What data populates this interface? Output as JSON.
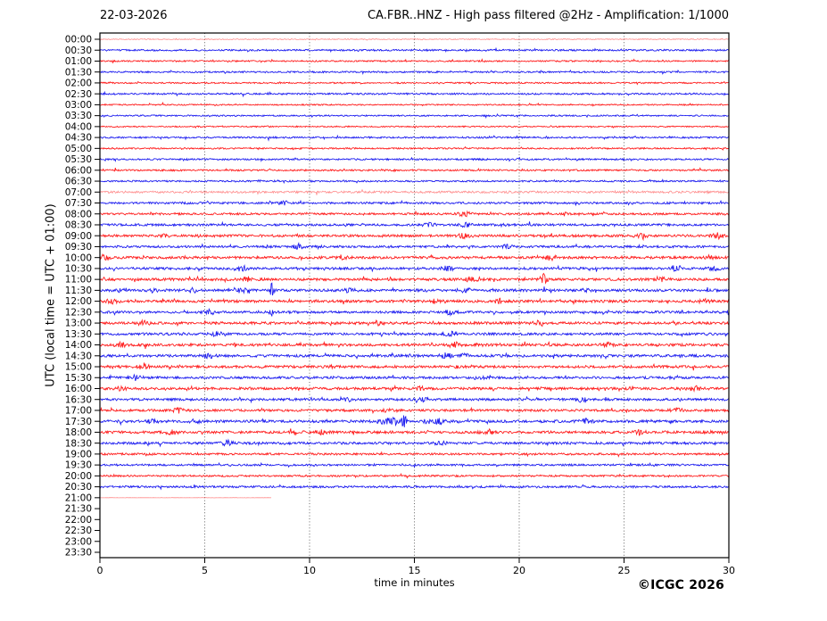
{
  "header": {
    "date": "22-03-2026",
    "title": "CA.FBR..HNZ - High pass filtered @2Hz - Amplification: 1/1000"
  },
  "footer": {
    "copyright": "©ICGC 2026"
  },
  "chart_data": {
    "type": "seismogram-helicorder",
    "title": "CA.FBR..HNZ - High pass filtered @2Hz - Amplification: 1/1000",
    "date": "22-03-2026",
    "xlabel": "time in minutes",
    "ylabel": "UTC (local time = UTC + 01:00)",
    "x_axis": {
      "min": 0,
      "max": 30,
      "ticks": [
        0,
        5,
        10,
        15,
        20,
        25,
        30
      ],
      "gridlines": [
        5,
        10,
        15,
        20,
        25
      ],
      "grid_style": "dotted"
    },
    "row_interval_minutes": 30,
    "colors": {
      "red_trace": "#ff0000",
      "blue_trace": "#0000ee",
      "frame": "#000000",
      "grid": "#555555",
      "text": "#000000"
    },
    "legend": "rows alternate red/blue per 30-min segment; events listed as [minute, amplitude_px, width_min]",
    "rows": [
      {
        "t": "00:00",
        "c": "r",
        "n": 0.5,
        "light": true,
        "ev": []
      },
      {
        "t": "00:30",
        "c": "b",
        "n": 0.9,
        "ev": []
      },
      {
        "t": "01:00",
        "c": "r",
        "n": 0.8,
        "ev": []
      },
      {
        "t": "01:30",
        "c": "b",
        "n": 0.9,
        "ev": []
      },
      {
        "t": "02:00",
        "c": "r",
        "n": 0.8,
        "ev": []
      },
      {
        "t": "02:30",
        "c": "b",
        "n": 0.9,
        "ev": []
      },
      {
        "t": "03:00",
        "c": "r",
        "n": 0.7,
        "ev": []
      },
      {
        "t": "03:30",
        "c": "b",
        "n": 0.8,
        "ev": []
      },
      {
        "t": "04:00",
        "c": "r",
        "n": 0.7,
        "ev": []
      },
      {
        "t": "04:30",
        "c": "b",
        "n": 0.9,
        "ev": []
      },
      {
        "t": "05:00",
        "c": "r",
        "n": 0.8,
        "ev": []
      },
      {
        "t": "05:30",
        "c": "b",
        "n": 0.9,
        "ev": []
      },
      {
        "t": "06:00",
        "c": "r",
        "n": 0.9,
        "ev": []
      },
      {
        "t": "06:30",
        "c": "b",
        "n": 0.9,
        "ev": []
      },
      {
        "t": "07:00",
        "c": "r",
        "n": 1.2,
        "light": true,
        "ev": []
      },
      {
        "t": "07:30",
        "c": "b",
        "n": 1.1,
        "ev": [
          [
            8.8,
            2.5,
            0.3
          ]
        ]
      },
      {
        "t": "08:00",
        "c": "r",
        "n": 1.1,
        "ev": [
          [
            17.4,
            3,
            0.3
          ]
        ]
      },
      {
        "t": "08:30",
        "c": "b",
        "n": 1.2,
        "ev": [
          [
            15.7,
            2,
            0.3
          ],
          [
            17.4,
            3,
            0.3
          ],
          [
            19.3,
            1.5,
            0.3
          ]
        ]
      },
      {
        "t": "09:00",
        "c": "r",
        "n": 1.3,
        "ev": [
          [
            3.2,
            1.5,
            0.3
          ],
          [
            17.4,
            3,
            0.3
          ],
          [
            25.8,
            2,
            0.3
          ],
          [
            29.5,
            2.5,
            0.3
          ]
        ]
      },
      {
        "t": "09:30",
        "c": "b",
        "n": 1.2,
        "ev": [
          [
            9.4,
            3,
            0.3
          ],
          [
            19.4,
            2,
            0.3
          ]
        ]
      },
      {
        "t": "10:00",
        "c": "r",
        "n": 1.4,
        "ev": [
          [
            0.2,
            3,
            0.3
          ],
          [
            11.5,
            2.5,
            0.3
          ],
          [
            21.5,
            2.5,
            0.3
          ],
          [
            29.0,
            2.5,
            0.3
          ]
        ]
      },
      {
        "t": "10:30",
        "c": "b",
        "n": 1.3,
        "ev": [
          [
            6.8,
            3,
            0.3
          ],
          [
            16.6,
            2.5,
            0.3
          ],
          [
            27.5,
            3,
            0.3
          ],
          [
            29.3,
            2,
            0.3
          ]
        ]
      },
      {
        "t": "11:00",
        "c": "r",
        "n": 1.4,
        "ev": [
          [
            7.0,
            2.5,
            0.3
          ],
          [
            17.7,
            3,
            0.3
          ],
          [
            21.2,
            8,
            0.12
          ],
          [
            26.7,
            2,
            0.3
          ]
        ]
      },
      {
        "t": "11:30",
        "c": "b",
        "n": 1.4,
        "ev": [
          [
            0.9,
            1.5,
            0.3
          ],
          [
            2.5,
            2,
            0.3
          ],
          [
            4.4,
            2,
            0.3
          ],
          [
            6.7,
            2.5,
            0.5
          ],
          [
            8.2,
            9,
            0.1
          ],
          [
            11.9,
            2.5,
            0.3
          ],
          [
            17.4,
            2.5,
            0.3
          ],
          [
            23.2,
            2.5,
            0.3
          ]
        ]
      },
      {
        "t": "12:00",
        "c": "r",
        "n": 1.4,
        "ev": [
          [
            0.6,
            2.5,
            0.3
          ],
          [
            16.0,
            2,
            0.3
          ],
          [
            19.0,
            4,
            0.15
          ],
          [
            28.8,
            2,
            0.3
          ]
        ]
      },
      {
        "t": "12:30",
        "c": "b",
        "n": 1.3,
        "ev": [
          [
            5.2,
            2.5,
            0.3
          ],
          [
            8.2,
            5,
            0.1
          ],
          [
            16.7,
            2.5,
            0.3
          ]
        ]
      },
      {
        "t": "13:00",
        "c": "r",
        "n": 1.4,
        "ev": [
          [
            2.0,
            2.5,
            0.3
          ],
          [
            13.3,
            2.5,
            0.3
          ],
          [
            21.0,
            2.5,
            0.3
          ]
        ]
      },
      {
        "t": "13:30",
        "c": "b",
        "n": 1.3,
        "ev": [
          [
            5.5,
            2.5,
            0.3
          ],
          [
            16.7,
            3,
            0.3
          ]
        ]
      },
      {
        "t": "14:00",
        "c": "r",
        "n": 1.4,
        "ev": [
          [
            1.0,
            2.5,
            0.3
          ],
          [
            17.0,
            2.5,
            0.3
          ],
          [
            24.2,
            2.5,
            0.3
          ]
        ]
      },
      {
        "t": "14:30",
        "c": "b",
        "n": 1.4,
        "ev": [
          [
            5.2,
            2,
            0.3
          ],
          [
            16.5,
            3,
            0.3
          ],
          [
            17.4,
            2.5,
            0.3
          ]
        ]
      },
      {
        "t": "15:00",
        "c": "r",
        "n": 1.4,
        "ev": [
          [
            2.1,
            2.5,
            0.3
          ],
          [
            17.1,
            2.5,
            0.3
          ]
        ]
      },
      {
        "t": "15:30",
        "c": "b",
        "n": 1.3,
        "ev": [
          [
            1.7,
            2.5,
            0.3
          ],
          [
            18.1,
            2,
            0.3
          ]
        ]
      },
      {
        "t": "16:00",
        "c": "r",
        "n": 1.4,
        "ev": [
          [
            1.0,
            2.5,
            0.3
          ],
          [
            15.3,
            2,
            0.3
          ],
          [
            28.4,
            2.5,
            0.3
          ]
        ]
      },
      {
        "t": "16:30",
        "c": "b",
        "n": 1.3,
        "ev": [
          [
            11.9,
            2,
            0.3
          ],
          [
            15.4,
            2.5,
            0.3
          ],
          [
            23.0,
            2.5,
            0.3
          ]
        ]
      },
      {
        "t": "17:00",
        "c": "r",
        "n": 1.3,
        "ev": [
          [
            3.7,
            2.5,
            0.3
          ],
          [
            13.7,
            2,
            0.3
          ],
          [
            27.5,
            2.5,
            0.3
          ]
        ]
      },
      {
        "t": "17:30",
        "c": "b",
        "n": 1.4,
        "ev": [
          [
            2.5,
            1.5,
            0.3
          ],
          [
            4.6,
            2,
            0.3
          ],
          [
            13.8,
            3,
            0.6
          ],
          [
            14.5,
            7,
            0.12
          ],
          [
            16.0,
            3,
            0.5
          ],
          [
            23.2,
            2.5,
            0.3
          ]
        ]
      },
      {
        "t": "18:00",
        "c": "r",
        "n": 1.4,
        "ev": [
          [
            3.4,
            2.5,
            0.3
          ],
          [
            10.6,
            2.5,
            0.3
          ],
          [
            18.5,
            2.5,
            0.3
          ],
          [
            25.7,
            2.5,
            0.3
          ]
        ]
      },
      {
        "t": "18:30",
        "c": "b",
        "n": 1.3,
        "ev": [
          [
            6.1,
            2.5,
            0.3
          ],
          [
            16.3,
            2,
            0.3
          ]
        ]
      },
      {
        "t": "19:00",
        "c": "r",
        "n": 1.1,
        "ev": []
      },
      {
        "t": "19:30",
        "c": "b",
        "n": 1.0,
        "ev": []
      },
      {
        "t": "20:00",
        "c": "r",
        "n": 1.0,
        "ev": []
      },
      {
        "t": "20:30",
        "c": "b",
        "n": 1.1,
        "ev": []
      },
      {
        "t": "21:00",
        "c": "r",
        "n": 0.15,
        "light": true,
        "end": 8.2,
        "ev": []
      },
      {
        "t": "21:30",
        "c": "b",
        "off": true
      },
      {
        "t": "22:00",
        "c": "r",
        "off": true
      },
      {
        "t": "22:30",
        "c": "b",
        "off": true
      },
      {
        "t": "23:00",
        "c": "r",
        "off": true
      },
      {
        "t": "23:30",
        "c": "b",
        "off": true
      }
    ]
  }
}
